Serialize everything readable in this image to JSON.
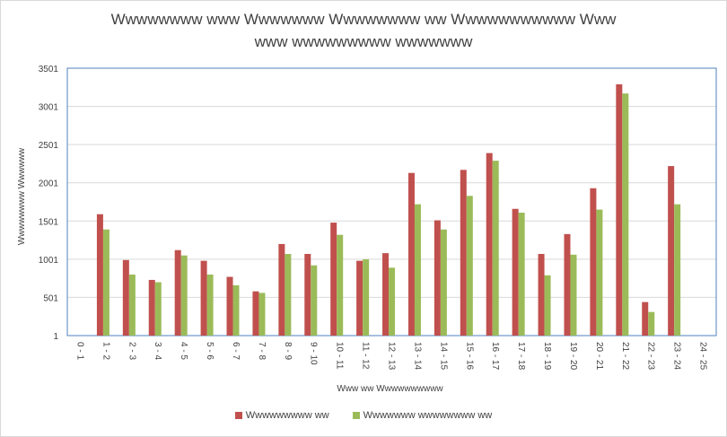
{
  "chart_data": {
    "type": "bar",
    "title": "Wwwwwwww www Wwwwwww Wwwwwwww ww Wwwwwwwwwww Www",
    "subtitle": "www wwwwwwwww wwwwwww",
    "xlabel": "Www ww Wwwwwwwwww",
    "ylabel": "Wwwwwwww Wwwwww",
    "ylim": [
      1,
      3501
    ],
    "yticks": [
      1,
      501,
      1001,
      1501,
      2001,
      2501,
      3001,
      3501
    ],
    "grid": true,
    "legend": "bottom",
    "categories": [
      "0 - 1",
      "1 - 2",
      "2 - 3",
      "3 - 4",
      "4 - 5",
      "5 - 6",
      "6 - 7",
      "7 - 8",
      "8 - 9",
      "9 - 10",
      "10 - 11",
      "11 - 12",
      "12 - 13",
      "13 - 14",
      "14 - 15",
      "15 - 16",
      "16 - 17",
      "17 - 18",
      "18 - 19",
      "19 - 20",
      "20 - 21",
      "21 - 22",
      "22 - 23",
      "23 - 24",
      "24 - 25"
    ],
    "series": [
      {
        "name": "Wwwwwwwww ww",
        "color": "#c0504d",
        "values": [
          0,
          1590,
          990,
          730,
          1120,
          980,
          770,
          580,
          1200,
          1070,
          1480,
          980,
          1080,
          2130,
          1510,
          2170,
          2390,
          1660,
          1070,
          1330,
          1930,
          3290,
          440,
          2220,
          0
        ]
      },
      {
        "name": "Wwwwwww wwwwwwww ww",
        "color": "#9bbb59",
        "values": [
          0,
          1390,
          800,
          700,
          1050,
          800,
          660,
          560,
          1070,
          920,
          1320,
          1000,
          890,
          1720,
          1390,
          1830,
          2290,
          1610,
          790,
          1060,
          1650,
          3170,
          310,
          1720,
          0
        ]
      }
    ]
  }
}
